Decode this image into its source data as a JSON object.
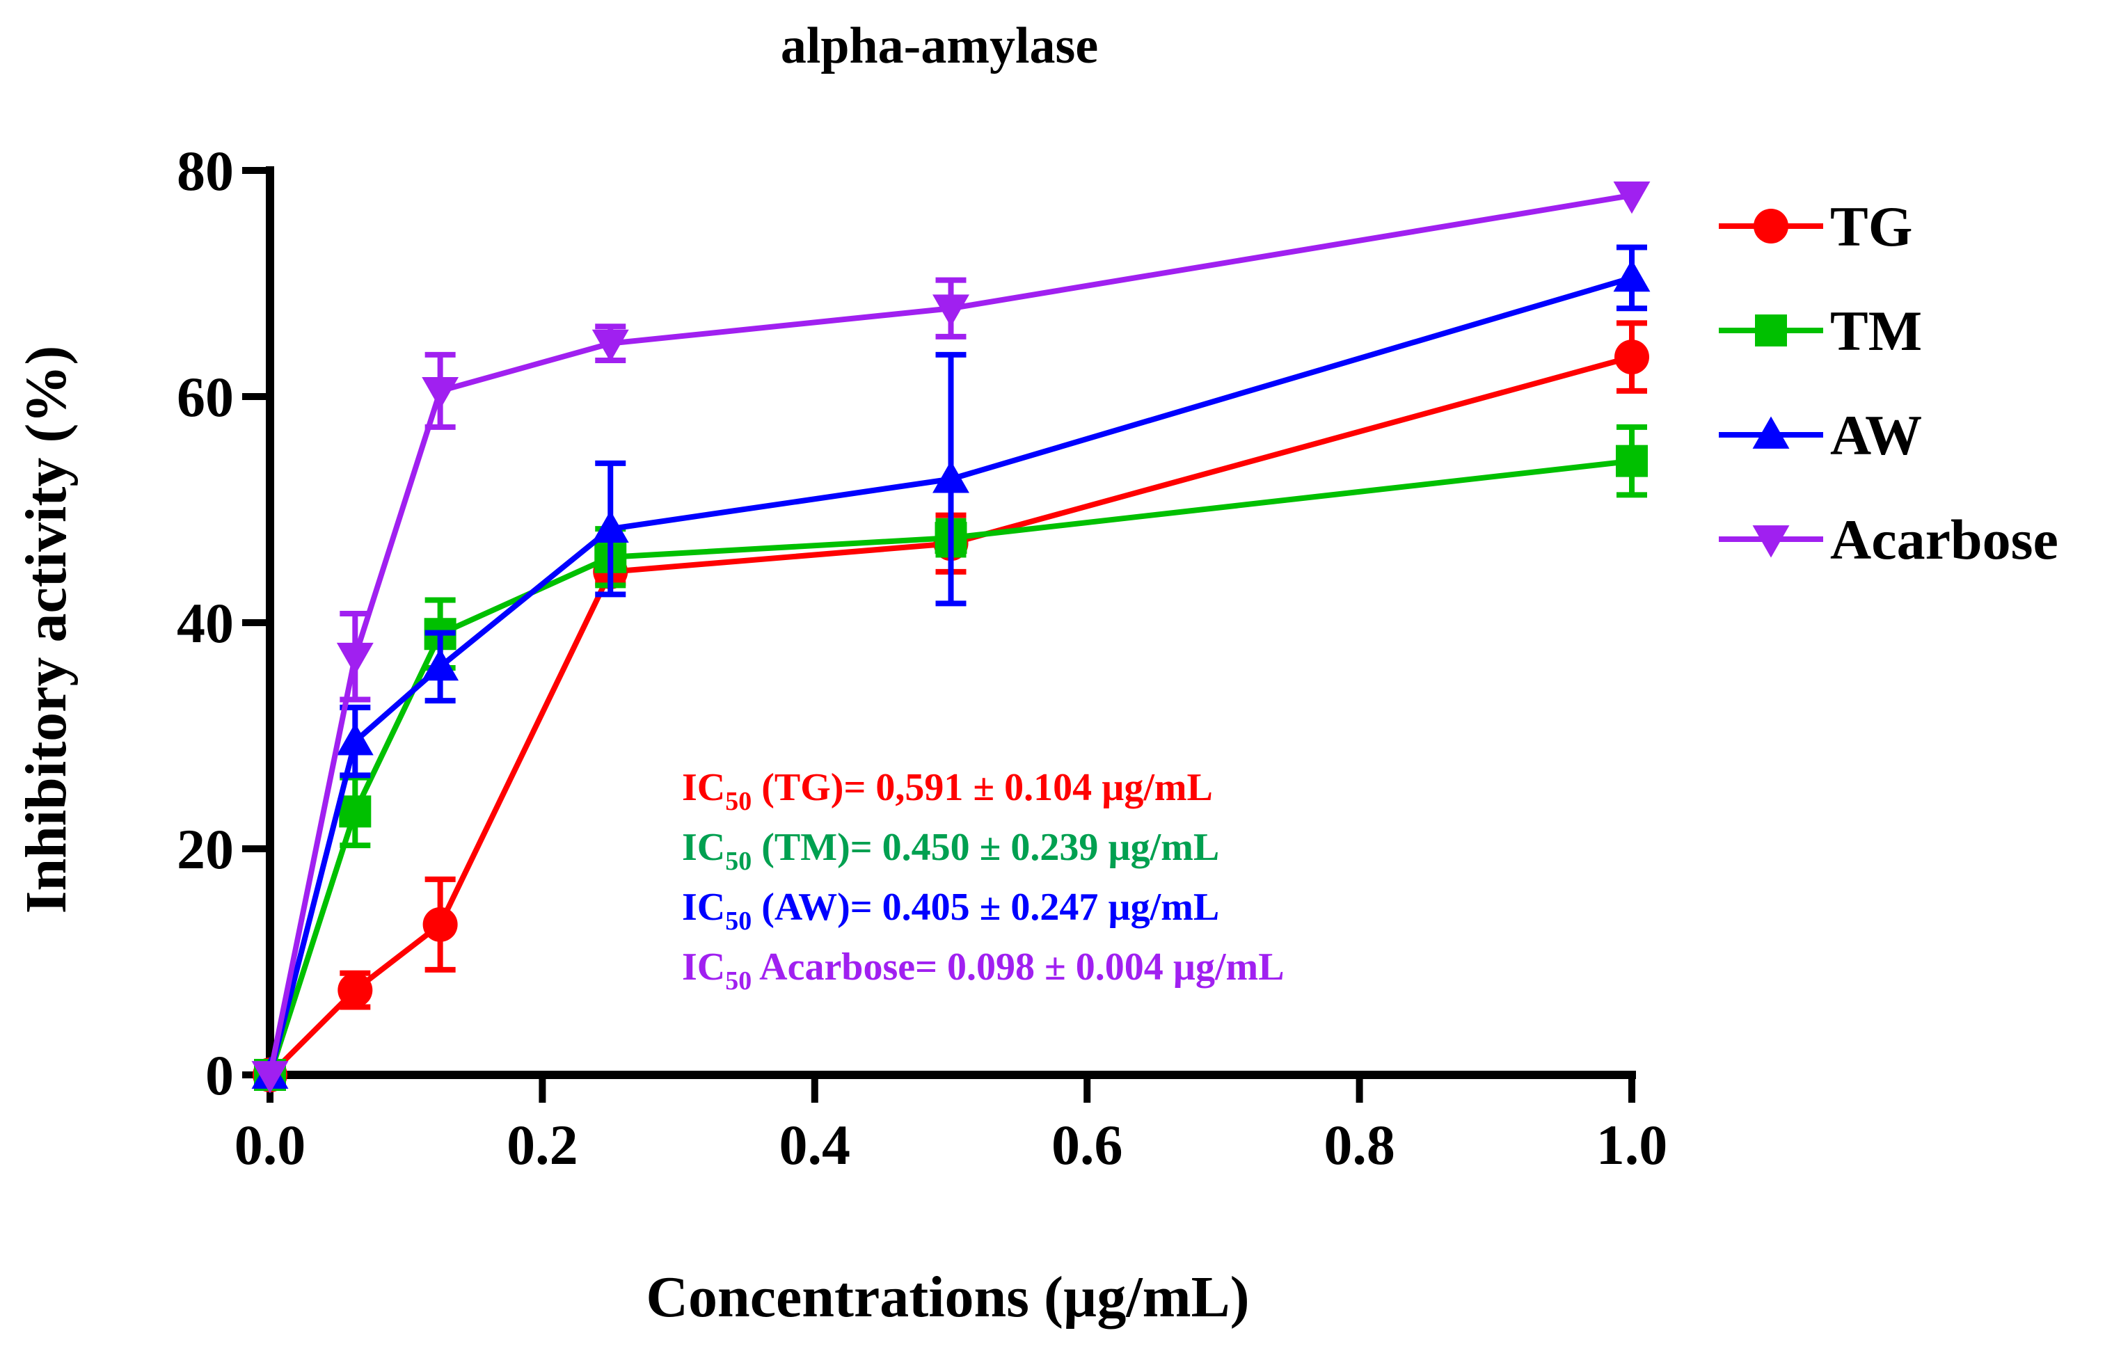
{
  "chart_data": {
    "type": "line",
    "title": "alpha-amylase",
    "xlabel": "Concentrations (µg/mL)",
    "ylabel": "Inhibitory activity (%)",
    "xlim": [
      0,
      1.0
    ],
    "ylim": [
      0,
      80
    ],
    "x_ticks": [
      "0.0",
      "0.2",
      "0.4",
      "0.6",
      "0.8",
      "1.0"
    ],
    "y_ticks": [
      "0",
      "20",
      "40",
      "60",
      "80"
    ],
    "x": [
      0,
      0.0625,
      0.125,
      0.25,
      0.5,
      1.0
    ],
    "series": [
      {
        "name": "TG",
        "color": "#ff0000",
        "marker": "circle",
        "values": [
          0,
          7.5,
          13.3,
          44.5,
          47,
          63.5
        ],
        "errors": [
          0,
          1.5,
          4,
          1,
          2.5,
          3
        ]
      },
      {
        "name": "TM",
        "color": "#00c000",
        "marker": "square",
        "values": [
          0,
          23.3,
          39,
          45.8,
          47.5,
          54.3
        ],
        "errors": [
          0,
          3,
          3,
          2.5,
          1.5,
          3
        ]
      },
      {
        "name": "AW",
        "color": "#0000ff",
        "marker": "triangle-up",
        "values": [
          0,
          29.5,
          36.1,
          48.3,
          52.7,
          70.5
        ],
        "errors": [
          0,
          3,
          3,
          5.8,
          11,
          2.7
        ]
      },
      {
        "name": "Acarbose",
        "color": "#a020f0",
        "marker": "triangle-down",
        "values": [
          0,
          37,
          60.5,
          64.7,
          67.8,
          77.8
        ],
        "errors": [
          0,
          3.8,
          3.2,
          1.5,
          2.5,
          0
        ]
      }
    ],
    "annotations": [
      {
        "prefix": "IC",
        "sub": "50",
        "text": " (TG)= 0,591 ± 0.104 µg/mL",
        "color": "#ff0000"
      },
      {
        "prefix": "IC",
        "sub": "50",
        "text": " (TM)= 0.450 ± 0.239 µg/mL",
        "color": "#00a050"
      },
      {
        "prefix": "IC",
        "sub": "50",
        "text": " (AW)= 0.405 ± 0.247 µg/mL",
        "color": "#0000ff"
      },
      {
        "prefix": "IC",
        "sub": "50",
        "text": " Acarbose= 0.098 ± 0.004 µg/mL",
        "color": "#a020f0"
      }
    ],
    "legend_position": "right"
  }
}
